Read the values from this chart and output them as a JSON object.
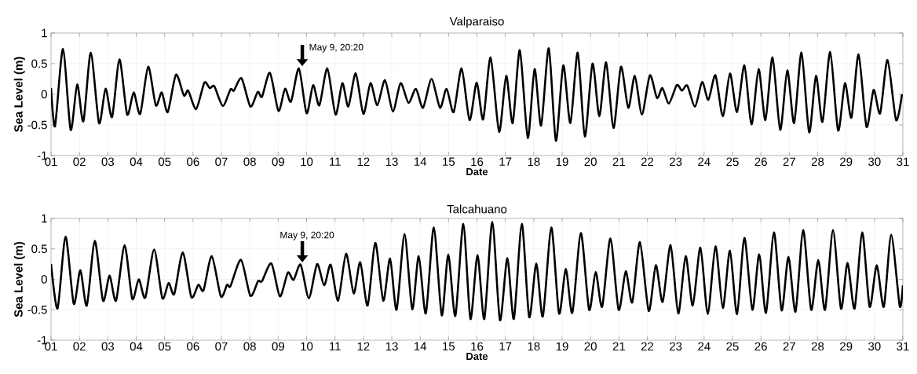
{
  "chart_data": [
    {
      "type": "line",
      "title": "Valparaiso",
      "xlabel": "Date",
      "ylabel": "Sea Level (m)",
      "xlim": [
        1,
        31
      ],
      "ylim": [
        -1,
        1
      ],
      "xticks": [
        {
          "value": 1,
          "label": "01"
        },
        {
          "value": 2,
          "label": "02"
        },
        {
          "value": 3,
          "label": "03"
        },
        {
          "value": 4,
          "label": "04"
        },
        {
          "value": 5,
          "label": "05"
        },
        {
          "value": 6,
          "label": "06"
        },
        {
          "value": 7,
          "label": "07"
        },
        {
          "value": 8,
          "label": "08"
        },
        {
          "value": 9,
          "label": "09"
        },
        10,
        11,
        12,
        13,
        14,
        15,
        16,
        17,
        18,
        19,
        20,
        21,
        22,
        23,
        24,
        25,
        26,
        27,
        28,
        29,
        30,
        31
      ],
      "yticks": [
        -1,
        -0.5,
        0,
        0.5,
        1
      ],
      "grid": true,
      "annotations": [
        {
          "text": "May 9, 20:20",
          "x": 9.85,
          "y": 0.42
        }
      ],
      "x": [
        1.0,
        1.14,
        1.42,
        1.69,
        1.92,
        2.14,
        2.4,
        2.69,
        2.92,
        3.15,
        3.41,
        3.68,
        3.91,
        4.14,
        4.42,
        4.69,
        4.9,
        5.11,
        5.4,
        5.68,
        5.83,
        6.11,
        6.4,
        6.59,
        6.75,
        7.05,
        7.32,
        7.44,
        7.71,
        8.02,
        8.28,
        8.43,
        8.71,
        9.01,
        9.24,
        9.45,
        9.73,
        10.0,
        10.23,
        10.45,
        10.73,
        11.02,
        11.26,
        11.47,
        11.73,
        12.0,
        12.25,
        12.49,
        12.76,
        13.04,
        13.31,
        13.59,
        13.85,
        14.1,
        14.4,
        14.7,
        14.93,
        15.18,
        15.46,
        15.74,
        15.99,
        16.22,
        16.48,
        16.78,
        17.03,
        17.26,
        17.51,
        17.79,
        18.03,
        18.26,
        18.53,
        18.78,
        19.04,
        19.29,
        19.55,
        19.8,
        20.07,
        20.31,
        20.55,
        20.81,
        21.07,
        21.33,
        21.56,
        21.81,
        22.09,
        22.34,
        22.53,
        22.76,
        23.04,
        23.22,
        23.41,
        23.68,
        23.93,
        24.15,
        24.4,
        24.66,
        24.91,
        25.16,
        25.42,
        25.67,
        25.92,
        26.16,
        26.41,
        26.68,
        26.93,
        27.17,
        27.43,
        27.7,
        27.94,
        28.17,
        28.44,
        28.72,
        28.96,
        29.19,
        29.44,
        29.72,
        29.97,
        30.2,
        30.46,
        30.76,
        30.97
      ],
      "series": [
        {
          "color": "#000000",
          "values": [
            0.1,
            -0.52,
            0.74,
            -0.58,
            0.16,
            -0.44,
            0.68,
            -0.47,
            0.09,
            -0.37,
            0.57,
            -0.33,
            0.03,
            -0.32,
            0.45,
            -0.18,
            0.03,
            -0.29,
            0.32,
            -0.02,
            0.06,
            -0.24,
            0.19,
            0.1,
            0.13,
            -0.19,
            0.08,
            0.06,
            0.26,
            -0.2,
            0.04,
            -0.04,
            0.35,
            -0.27,
            0.09,
            -0.12,
            0.42,
            -0.31,
            0.15,
            -0.18,
            0.42,
            -0.33,
            0.18,
            -0.2,
            0.34,
            -0.32,
            0.18,
            -0.18,
            0.23,
            -0.28,
            0.18,
            -0.14,
            0.09,
            -0.22,
            0.25,
            -0.22,
            0.09,
            -0.29,
            0.42,
            -0.42,
            0.19,
            -0.41,
            0.6,
            -0.61,
            0.3,
            -0.47,
            0.72,
            -0.71,
            0.41,
            -0.51,
            0.75,
            -0.76,
            0.47,
            -0.47,
            0.68,
            -0.69,
            0.5,
            -0.36,
            0.52,
            -0.55,
            0.45,
            -0.22,
            0.3,
            -0.33,
            0.31,
            -0.06,
            0.1,
            -0.15,
            0.15,
            0.06,
            0.14,
            -0.2,
            0.2,
            -0.09,
            0.31,
            -0.36,
            0.34,
            -0.29,
            0.47,
            -0.49,
            0.41,
            -0.42,
            0.6,
            -0.58,
            0.39,
            -0.47,
            0.68,
            -0.62,
            0.3,
            -0.45,
            0.69,
            -0.59,
            0.18,
            -0.38,
            0.65,
            -0.53,
            0.07,
            -0.31,
            0.56,
            -0.42,
            0.0
          ]
        }
      ]
    },
    {
      "type": "line",
      "title": "Talcahuano",
      "xlabel": "Date",
      "ylabel": "Sea Level (m)",
      "xlim": [
        1,
        31
      ],
      "ylim": [
        -1,
        1
      ],
      "xticks": [
        {
          "value": 1,
          "label": "01"
        },
        {
          "value": 2,
          "label": "02"
        },
        {
          "value": 3,
          "label": "03"
        },
        {
          "value": 4,
          "label": "04"
        },
        {
          "value": 5,
          "label": "05"
        },
        {
          "value": 6,
          "label": "06"
        },
        {
          "value": 7,
          "label": "07"
        },
        {
          "value": 8,
          "label": "08"
        },
        {
          "value": 9,
          "label": "09"
        },
        10,
        11,
        12,
        13,
        14,
        15,
        16,
        17,
        18,
        19,
        20,
        21,
        22,
        23,
        24,
        25,
        26,
        27,
        28,
        29,
        30,
        31
      ],
      "yticks": [
        -1,
        -0.5,
        0,
        0.5,
        1
      ],
      "grid": true,
      "annotations": [
        {
          "text": "May 9, 20:20",
          "x": 9.85,
          "y": 0.24
        }
      ],
      "x": [
        1.0,
        1.23,
        1.51,
        1.8,
        2.03,
        2.26,
        2.54,
        2.83,
        3.06,
        3.29,
        3.59,
        3.86,
        4.09,
        4.32,
        4.63,
        4.92,
        5.14,
        5.34,
        5.64,
        5.94,
        6.19,
        6.37,
        6.66,
        6.98,
        7.2,
        7.32,
        7.69,
        8.02,
        8.29,
        8.43,
        8.76,
        9.06,
        9.34,
        9.54,
        9.79,
        10.08,
        10.37,
        10.62,
        10.85,
        11.11,
        11.39,
        11.66,
        11.89,
        12.15,
        12.42,
        12.7,
        12.94,
        13.17,
        13.45,
        13.72,
        13.95,
        14.2,
        14.48,
        14.76,
        14.99,
        15.24,
        15.52,
        15.77,
        16.02,
        16.26,
        16.54,
        16.81,
        17.07,
        17.3,
        17.58,
        17.84,
        18.09,
        18.32,
        18.62,
        18.89,
        19.13,
        19.36,
        19.66,
        19.95,
        20.18,
        20.41,
        20.7,
        20.99,
        21.24,
        21.47,
        21.74,
        22.05,
        22.3,
        22.54,
        22.82,
        23.09,
        23.35,
        23.6,
        23.87,
        24.13,
        24.4,
        24.66,
        24.91,
        25.16,
        25.42,
        25.7,
        25.94,
        26.18,
        26.46,
        26.73,
        26.97,
        27.22,
        27.49,
        27.77,
        28.02,
        28.26,
        28.54,
        28.82,
        29.05,
        29.3,
        29.57,
        29.83,
        30.08,
        30.33,
        30.59,
        30.89,
        31.0
      ],
      "series": [
        {
          "color": "#000000",
          "values": [
            0.25,
            -0.48,
            0.7,
            -0.4,
            0.15,
            -0.43,
            0.63,
            -0.35,
            0.06,
            -0.35,
            0.56,
            -0.32,
            0.0,
            -0.3,
            0.49,
            -0.31,
            -0.06,
            -0.24,
            0.44,
            -0.29,
            -0.09,
            -0.18,
            0.38,
            -0.28,
            -0.09,
            -0.11,
            0.32,
            -0.27,
            -0.03,
            -0.03,
            0.26,
            -0.28,
            0.11,
            -0.01,
            0.24,
            -0.31,
            0.25,
            -0.1,
            0.24,
            -0.35,
            0.42,
            -0.23,
            0.28,
            -0.43,
            0.6,
            -0.35,
            0.34,
            -0.5,
            0.74,
            -0.49,
            0.38,
            -0.56,
            0.85,
            -0.59,
            0.41,
            -0.6,
            0.91,
            -0.65,
            0.4,
            -0.65,
            0.94,
            -0.67,
            0.35,
            -0.65,
            0.91,
            -0.62,
            0.26,
            -0.61,
            0.85,
            -0.56,
            0.17,
            -0.55,
            0.76,
            -0.5,
            0.12,
            -0.45,
            0.67,
            -0.5,
            0.13,
            -0.38,
            0.61,
            -0.52,
            0.23,
            -0.37,
            0.56,
            -0.56,
            0.38,
            -0.43,
            0.52,
            -0.57,
            0.54,
            -0.47,
            0.47,
            -0.57,
            0.68,
            -0.5,
            0.41,
            -0.55,
            0.77,
            -0.51,
            0.37,
            -0.53,
            0.81,
            -0.5,
            0.32,
            -0.5,
            0.81,
            -0.48,
            0.27,
            -0.48,
            0.77,
            -0.45,
            0.23,
            -0.45,
            0.73,
            -0.44,
            -0.1
          ]
        }
      ]
    }
  ]
}
